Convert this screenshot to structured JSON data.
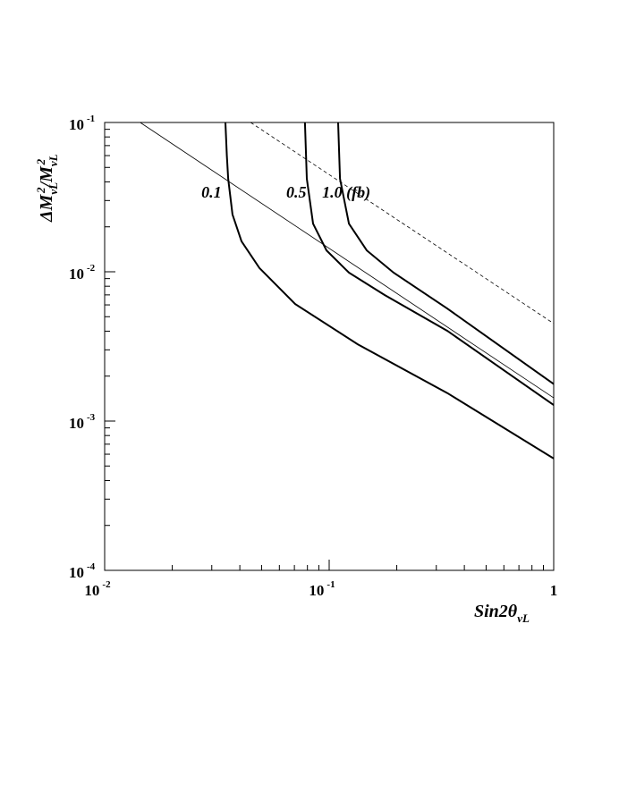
{
  "chart_data": {
    "type": "line",
    "xlabel": [
      "Sin2θ",
      "νL"
    ],
    "ylabel": [
      "ΔM",
      "νL",
      "2",
      "/M",
      "νL",
      "2"
    ],
    "xscale": "log",
    "yscale": "log",
    "xlim": [
      0.01,
      1
    ],
    "ylim": [
      0.0001,
      0.1
    ],
    "xticks": [
      {
        "value": 0.01,
        "label": "10",
        "exponent": "-2"
      },
      {
        "value": 0.1,
        "label": "10",
        "exponent": "-1"
      },
      1
    ],
    "yticks": [
      {
        "value": 0.0001,
        "label": "10",
        "exponent": "-4"
      },
      {
        "value": 0.001,
        "label": "10",
        "exponent": "-3"
      },
      {
        "value": 0.01,
        "label": "10",
        "exponent": "-2"
      },
      {
        "value": 0.1,
        "label": "10",
        "exponent": "-1"
      }
    ],
    "xminor": [
      0.02,
      0.03,
      0.04,
      0.05,
      0.06,
      0.07,
      0.08,
      0.09,
      0.2,
      0.3,
      0.4,
      0.5,
      0.6,
      0.7,
      0.8,
      0.9
    ],
    "yminor": [
      0.0002,
      0.0003,
      0.0004,
      0.0005,
      0.0006,
      0.0007,
      0.0008,
      0.0009,
      0.002,
      0.003,
      0.004,
      0.005,
      0.006,
      0.007,
      0.008,
      0.009,
      0.02,
      0.03,
      0.04,
      0.05,
      0.06,
      0.07,
      0.08,
      0.09
    ],
    "series": [
      {
        "name": "0.1",
        "color": "#000",
        "width": 2,
        "dash": false,
        "x": [
          0.0345,
          0.035,
          0.0355,
          0.0371,
          0.0407,
          0.0489,
          0.0706,
          0.134,
          0.336,
          1
        ],
        "values": [
          0.1,
          0.06,
          0.042,
          0.0242,
          0.016,
          0.0106,
          0.00608,
          0.00327,
          0.00154,
          0.000561
        ]
      },
      {
        "name": "0.5",
        "color": "#000",
        "width": 2,
        "dash": false,
        "x": [
          0.078,
          0.0795,
          0.0848,
          0.0973,
          0.1225,
          0.1766,
          0.336,
          1
        ],
        "values": [
          0.1,
          0.042,
          0.021,
          0.0139,
          0.00986,
          0.00699,
          0.00402,
          0.00128
        ]
      },
      {
        "name": "1.0 (fb)",
        "color": "#000",
        "width": 2,
        "dash": false,
        "x": [
          0.1096,
          0.1117,
          0.1225,
          0.147,
          0.1936,
          0.336,
          1
        ],
        "values": [
          0.1,
          0.042,
          0.021,
          0.0139,
          0.00986,
          0.00567,
          0.00177
        ]
      },
      {
        "color": "#000",
        "width": 0.8,
        "dash": false,
        "x": [
          0.0144,
          1
        ],
        "values": [
          0.1,
          0.00143
        ]
      },
      {
        "color": "#000",
        "width": 0.8,
        "dash": true,
        "x": [
          0.0447,
          1
        ],
        "values": [
          0.1,
          0.0045
        ]
      }
    ]
  }
}
